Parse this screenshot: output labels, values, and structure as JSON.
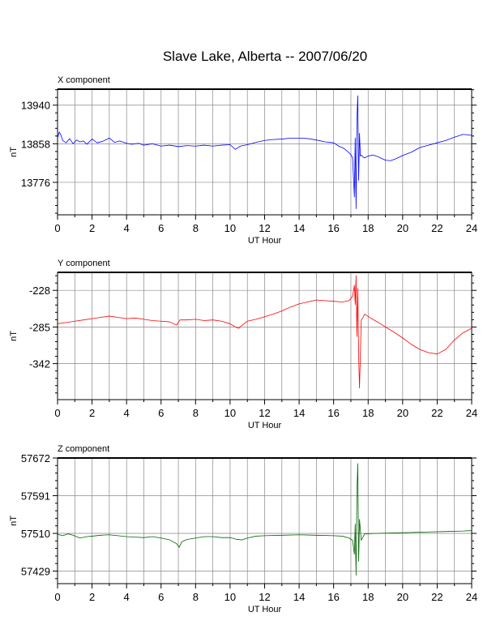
{
  "title": "Slave Lake, Alberta -- 2007/06/20",
  "chart_data": [
    {
      "type": "line",
      "panel_title": "X component",
      "xlabel": "UT Hour",
      "ylabel": "nT",
      "xlim": [
        0,
        24
      ],
      "ylim": [
        13707,
        13974
      ],
      "grid": true,
      "x_ticks": [
        0,
        2,
        4,
        6,
        8,
        10,
        12,
        14,
        16,
        18,
        20,
        22,
        24
      ],
      "y_ticks": [
        13776,
        13858,
        13940
      ],
      "series": [
        {
          "color": "#0000ff",
          "x": [
            0,
            0.1,
            0.2,
            0.3,
            0.5,
            0.7,
            0.9,
            1.1,
            1.3,
            1.5,
            1.7,
            2.0,
            2.3,
            2.6,
            3.0,
            3.3,
            3.6,
            4.0,
            4.3,
            4.7,
            5.0,
            5.5,
            6.0,
            6.5,
            7.0,
            7.5,
            8.0,
            8.5,
            9.0,
            9.5,
            10.0,
            10.3,
            10.6,
            11.0,
            11.5,
            12.0,
            12.5,
            13.0,
            13.5,
            14.0,
            14.5,
            15.0,
            15.5,
            16.0,
            16.3,
            16.6,
            16.8,
            17.0,
            17.1,
            17.2,
            17.25,
            17.3,
            17.35,
            17.4,
            17.45,
            17.5,
            17.55,
            17.6,
            17.7,
            17.8,
            18.0,
            18.3,
            18.6,
            19.0,
            19.3,
            19.6,
            20.0,
            20.5,
            21.0,
            21.5,
            22.0,
            22.5,
            23.0,
            23.5,
            24.0
          ],
          "y": [
            13870,
            13883,
            13876,
            13865,
            13860,
            13869,
            13858,
            13866,
            13862,
            13864,
            13857,
            13868,
            13860,
            13863,
            13870,
            13861,
            13864,
            13859,
            13857,
            13859,
            13855,
            13858,
            13853,
            13855,
            13852,
            13854,
            13853,
            13855,
            13853,
            13855,
            13856,
            13846,
            13853,
            13856,
            13861,
            13865,
            13867,
            13868,
            13870,
            13870,
            13869,
            13866,
            13862,
            13860,
            13853,
            13848,
            13842,
            13835,
            13828,
            13745,
            13870,
            13720,
            13910,
            13960,
            13780,
            13880,
            13832,
            13834,
            13830,
            13828,
            13832,
            13834,
            13830,
            13823,
            13822,
            13826,
            13833,
            13840,
            13850,
            13855,
            13860,
            13865,
            13872,
            13878,
            13876
          ]
        }
      ]
    },
    {
      "type": "line",
      "panel_title": "Y component",
      "xlabel": "UT Hour",
      "ylabel": "nT",
      "xlim": [
        0,
        24
      ],
      "ylim": [
        -398,
        -200
      ],
      "grid": true,
      "x_ticks": [
        0,
        2,
        4,
        6,
        8,
        10,
        12,
        14,
        16,
        18,
        20,
        22,
        24
      ],
      "y_ticks": [
        -228,
        -285,
        -342
      ],
      "series": [
        {
          "color": "#ff0000",
          "x": [
            0,
            0.5,
            1.0,
            1.5,
            2.0,
            2.5,
            3.0,
            3.5,
            4.0,
            4.5,
            5.0,
            5.5,
            6.0,
            6.5,
            6.9,
            7.1,
            7.5,
            8.0,
            8.5,
            9.0,
            9.5,
            10.0,
            10.3,
            10.5,
            10.8,
            11.0,
            11.5,
            12.0,
            12.5,
            13.0,
            13.5,
            14.0,
            14.5,
            15.0,
            15.5,
            16.0,
            16.5,
            16.9,
            17.1,
            17.2,
            17.25,
            17.3,
            17.35,
            17.4,
            17.45,
            17.5,
            17.6,
            17.8,
            18.2,
            18.6,
            19.0,
            19.5,
            20.0,
            20.5,
            21.0,
            21.5,
            22.0,
            22.5,
            23.0,
            23.5,
            24.0
          ],
          "y": [
            -280,
            -278,
            -276,
            -274,
            -272,
            -270,
            -268,
            -270,
            -272,
            -271,
            -273,
            -275,
            -276,
            -277,
            -282,
            -274,
            -274,
            -273,
            -275,
            -274,
            -276,
            -280,
            -285,
            -287,
            -280,
            -276,
            -273,
            -269,
            -265,
            -260,
            -254,
            -249,
            -246,
            -243,
            -244,
            -245,
            -246,
            -244,
            -237,
            -220,
            -250,
            -205,
            -300,
            -225,
            -330,
            -380,
            -275,
            -265,
            -272,
            -278,
            -285,
            -293,
            -302,
            -312,
            -320,
            -325,
            -327,
            -320,
            -305,
            -294,
            -287
          ]
        }
      ]
    },
    {
      "type": "line",
      "panel_title": "Z component",
      "xlabel": "UT Hour",
      "ylabel": "nT",
      "xlim": [
        0,
        24
      ],
      "ylim": [
        57402,
        57672
      ],
      "grid": true,
      "x_ticks": [
        0,
        2,
        4,
        6,
        8,
        10,
        12,
        14,
        16,
        18,
        20,
        22,
        24
      ],
      "y_ticks": [
        57429,
        57510,
        57591,
        57672
      ],
      "series": [
        {
          "color": "#006400",
          "x": [
            0,
            0.3,
            0.6,
            0.9,
            1.3,
            1.7,
            2.0,
            2.5,
            3.0,
            3.5,
            4.0,
            4.5,
            5.0,
            5.5,
            6.0,
            6.5,
            6.9,
            7.05,
            7.2,
            7.5,
            8.0,
            8.5,
            9.0,
            9.5,
            10.0,
            10.4,
            10.7,
            11.0,
            11.5,
            12.0,
            13.0,
            14.0,
            15.0,
            16.0,
            16.5,
            16.9,
            17.1,
            17.2,
            17.25,
            17.3,
            17.35,
            17.4,
            17.45,
            17.5,
            17.6,
            17.8,
            18.5,
            19.5,
            20.5,
            21.5,
            22.5,
            23.5,
            24.0
          ],
          "y": [
            57508,
            57505,
            57509,
            57506,
            57500,
            57503,
            57504,
            57506,
            57507,
            57505,
            57503,
            57502,
            57501,
            57503,
            57500,
            57496,
            57488,
            57480,
            57492,
            57497,
            57500,
            57503,
            57503,
            57501,
            57501,
            57497,
            57496,
            57500,
            57504,
            57505,
            57506,
            57507,
            57506,
            57505,
            57504,
            57500,
            57495,
            57465,
            57530,
            57420,
            57600,
            57660,
            57450,
            57540,
            57495,
            57509,
            57510,
            57511,
            57512,
            57513,
            57514,
            57515,
            57516
          ]
        }
      ]
    }
  ]
}
